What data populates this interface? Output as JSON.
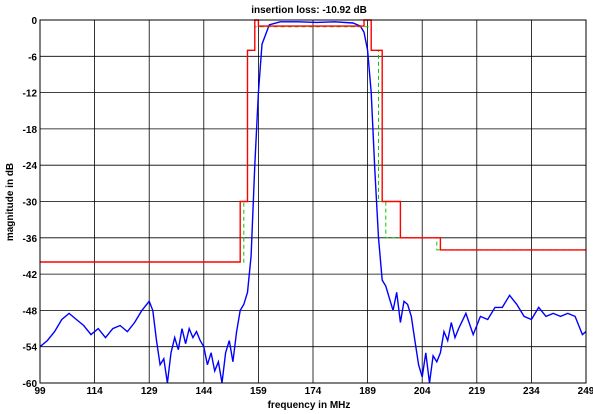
{
  "chart_data": {
    "type": "line",
    "title": "insertion loss: -10.92  dB",
    "xlabel": "frequency in MHz",
    "ylabel": "magnitude in dB",
    "xlim": [
      99,
      249
    ],
    "ylim": [
      -60,
      0
    ],
    "xticks": [
      99,
      114,
      129,
      144,
      159,
      174,
      189,
      204,
      219,
      234,
      249
    ],
    "yticks": [
      0,
      -6,
      -12,
      -18,
      -24,
      -30,
      -36,
      -42,
      -48,
      -54,
      -60
    ],
    "grid": true,
    "series": [
      {
        "color": "#0000ff",
        "style": "solid",
        "x": [
          99,
          101,
          103,
          105,
          107,
          109,
          111,
          113,
          115,
          117,
          119,
          121,
          123,
          125,
          127,
          129,
          130,
          131,
          132,
          133,
          134,
          135,
          136,
          137,
          138,
          139,
          140,
          141,
          142,
          143,
          144,
          145,
          146,
          147,
          148,
          149,
          150,
          151,
          152,
          153,
          154,
          155,
          156,
          157,
          158,
          159,
          160,
          162,
          165,
          170,
          175,
          180,
          185,
          187,
          188,
          189,
          190,
          191,
          192,
          193,
          194,
          195,
          196,
          197,
          198,
          199,
          200,
          201,
          202,
          203,
          204,
          205,
          206,
          207,
          208,
          209,
          210,
          211,
          212,
          213,
          214,
          216,
          218,
          220,
          222,
          224,
          226,
          228,
          230,
          232,
          234,
          236,
          238,
          240,
          242,
          244,
          246,
          248,
          249
        ],
        "y": [
          -54,
          -53,
          -51.5,
          -49.5,
          -48.5,
          -49.5,
          -50.5,
          -52,
          -51,
          -52.5,
          -51,
          -50.5,
          -51.5,
          -50,
          -48,
          -46.5,
          -48,
          -53,
          -57,
          -56,
          -60.5,
          -55,
          -52.5,
          -54.5,
          -51,
          -53.5,
          -51,
          -52.5,
          -51.5,
          -53,
          -54,
          -57,
          -55,
          -58,
          -56.5,
          -60.5,
          -55,
          -53,
          -56.5,
          -51.5,
          -48,
          -47,
          -45,
          -39,
          -24,
          -12,
          -4,
          -0.8,
          -0.3,
          -0.3,
          -0.4,
          -0.3,
          -0.5,
          -1,
          -2,
          -5,
          -12,
          -25,
          -36,
          -43,
          -44,
          -46,
          -48,
          -45,
          -50,
          -46.5,
          -47,
          -49,
          -53,
          -57,
          -59,
          -55,
          -60,
          -55.5,
          -56.5,
          -55,
          -51.5,
          -53,
          -50,
          -52.5,
          -51,
          -48.5,
          -52,
          -49,
          -49.5,
          -47.5,
          -47.5,
          -45.5,
          -47,
          -49,
          -49.5,
          -47.5,
          -49,
          -48.5,
          -49,
          -48.5,
          -49,
          -52,
          -51.5
        ]
      },
      {
        "color": "#00cc00",
        "style": "dashed",
        "x": [
          99,
          153,
          153,
          155,
          155,
          156,
          156,
          158,
          158,
          190,
          190,
          192,
          192,
          194,
          194,
          196,
          196,
          208,
          208,
          249
        ],
        "y": [
          -40,
          -40,
          -40,
          -40,
          -30,
          -30,
          -5,
          -5,
          -1.1,
          -1.1,
          -5,
          -5,
          -30,
          -30,
          -36,
          -36,
          -36,
          -36,
          -38,
          -38
        ]
      },
      {
        "color": "#ff0000",
        "style": "solid",
        "x": [
          99,
          154,
          154,
          156,
          156,
          158,
          158,
          159,
          159,
          188,
          188,
          190,
          190,
          193,
          193,
          198,
          198,
          209,
          209,
          249
        ],
        "y": [
          -40,
          -40,
          -30,
          -30,
          -5,
          -5,
          0,
          0,
          -1,
          -1,
          0,
          0,
          -5,
          -5,
          -30,
          -30,
          -36,
          -36,
          -38,
          -38
        ]
      }
    ]
  }
}
